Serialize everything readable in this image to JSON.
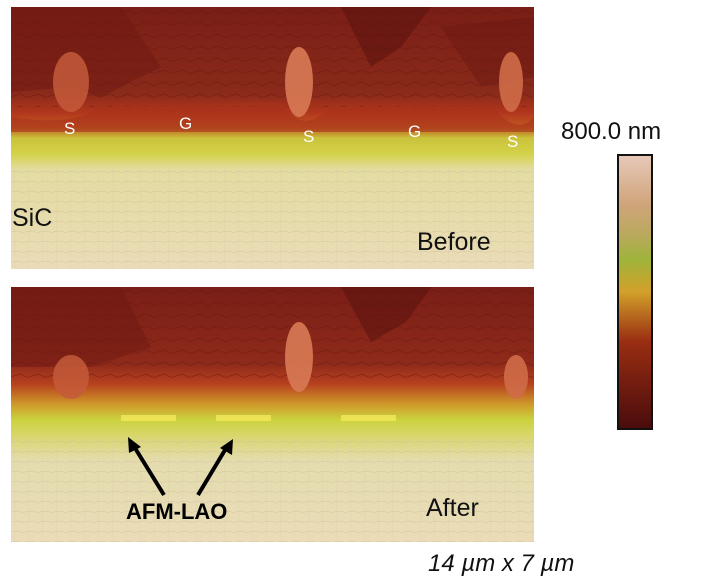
{
  "panels": {
    "before": {
      "material_label": "SiC",
      "state_label": "Before",
      "region_labels": [
        "S",
        "G",
        "S",
        "G",
        "S"
      ]
    },
    "after": {
      "state_label": "After",
      "annotation": "AFM-LAO"
    }
  },
  "color_scale": {
    "max_label": "800.0 nm",
    "colors": [
      "#e7c8b8",
      "#cfa47a",
      "#9fb43a",
      "#d2a02a",
      "#9a2e12",
      "#4a0c0c"
    ]
  },
  "scan_size": "14 µm x 7 µm"
}
